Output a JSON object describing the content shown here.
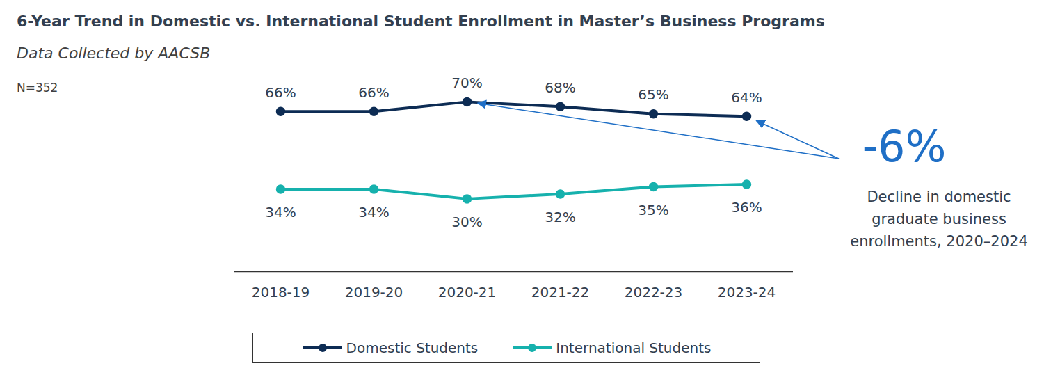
{
  "chart_data": {
    "type": "line",
    "title": "6-Year Trend in Domestic vs. International Student Enrollment in Master’s Business Programs",
    "subtitle": "Data Collected by AACSB",
    "note": "N=352",
    "categories": [
      "2018-19",
      "2019-20",
      "2020-21",
      "2021-22",
      "2022-23",
      "2023-24"
    ],
    "series": [
      {
        "name": "Domestic Students",
        "color": "#0d2c54",
        "marker": "circle",
        "values": [
          66,
          66,
          70,
          68,
          65,
          64
        ],
        "value_labels": [
          "66%",
          "66%",
          "70%",
          "68%",
          "65%",
          "64%"
        ]
      },
      {
        "name": "International Students",
        "color": "#16b1ad",
        "marker": "circle",
        "values": [
          34,
          34,
          30,
          32,
          35,
          36
        ],
        "value_labels": [
          "34%",
          "34%",
          "30%",
          "32%",
          "35%",
          "36%"
        ]
      }
    ],
    "annotation": {
      "value": -6,
      "label": "-6%",
      "text": "Decline in domestic graduate business enrollments, 2020–2024"
    },
    "ylim": [
      0,
      80
    ],
    "tick_labels": "x",
    "data_labels": true,
    "grid": false,
    "legend": "bottom"
  }
}
